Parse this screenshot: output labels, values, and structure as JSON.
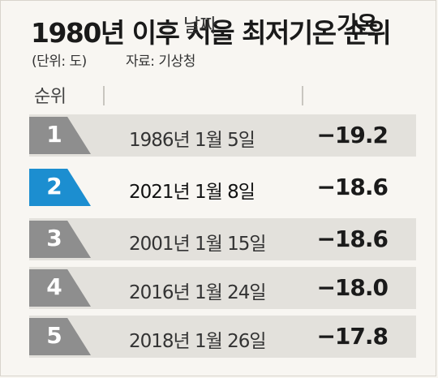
{
  "title": "1980년 이후 서울 최저기온 순위",
  "unit": "(단위: 도)",
  "source": "자료: 기상청",
  "headers": {
    "rank": "순위",
    "date": "날짜",
    "temp": "기온"
  },
  "colors": {
    "highlight": "#1c8ed0",
    "badge": "#8e8e8e",
    "row_bg": "#e3e1dc"
  },
  "rows": [
    {
      "rank": "1",
      "date": "1986년 1월 5일",
      "temp": "−19.2"
    },
    {
      "rank": "2",
      "date": "2021년 1월 8일",
      "temp": "−18.6",
      "highlight": true
    },
    {
      "rank": "3",
      "date": "2001년 1월 15일",
      "temp": "−18.6"
    },
    {
      "rank": "4",
      "date": "2016년 1월 24일",
      "temp": "−18.0"
    },
    {
      "rank": "5",
      "date": "2018년 1월 26일",
      "temp": "−17.8"
    }
  ]
}
